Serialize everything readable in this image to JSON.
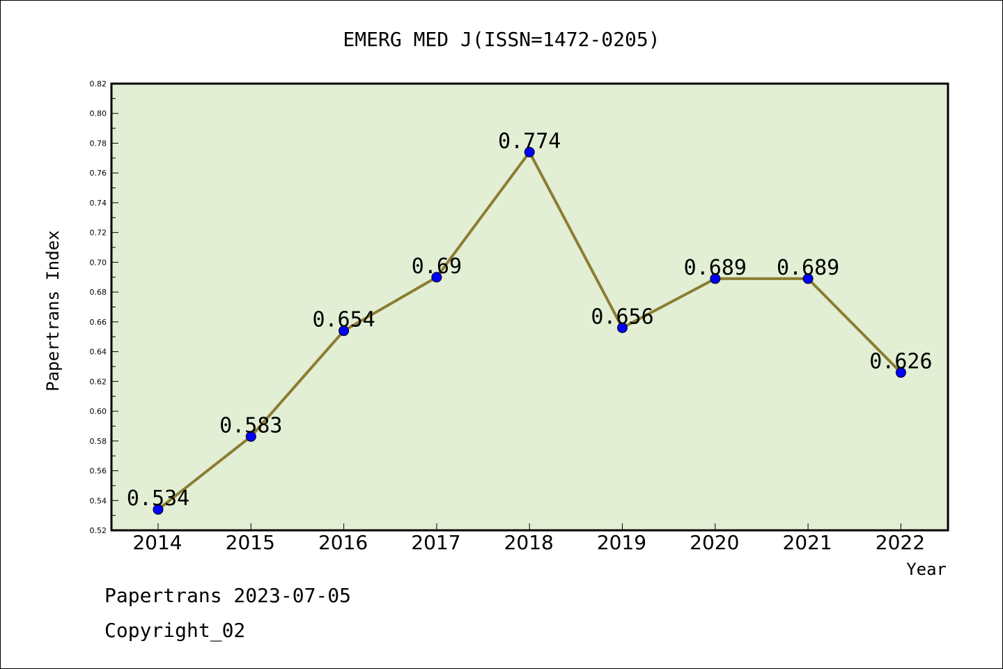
{
  "chart_data": {
    "type": "line",
    "title": "EMERG MED J(ISSN=1472-0205)",
    "xlabel": "Year",
    "ylabel": "Papertrans Index",
    "categories": [
      "2014",
      "2015",
      "2016",
      "2017",
      "2018",
      "2019",
      "2020",
      "2021",
      "2022"
    ],
    "values": [
      0.534,
      0.583,
      0.654,
      0.69,
      0.774,
      0.656,
      0.689,
      0.689,
      0.626
    ],
    "value_labels": [
      "0.534",
      "0.583",
      "0.654",
      "0.69",
      "0.774",
      "0.656",
      "0.689",
      "0.689",
      "0.626"
    ],
    "ylim": [
      0.52,
      0.82
    ],
    "yticks": [
      "0.52",
      "0.54",
      "0.56",
      "0.58",
      "0.60",
      "0.62",
      "0.64",
      "0.66",
      "0.68",
      "0.70",
      "0.72",
      "0.74",
      "0.76",
      "0.78",
      "0.80",
      "0.82"
    ],
    "grid": false,
    "colors": {
      "plot_background": "#e2efd5",
      "line": "#8b7d33",
      "marker": "#0000ff"
    }
  },
  "footer": {
    "line1": "Papertrans 2023-07-05",
    "line2": "Copyright_02"
  }
}
